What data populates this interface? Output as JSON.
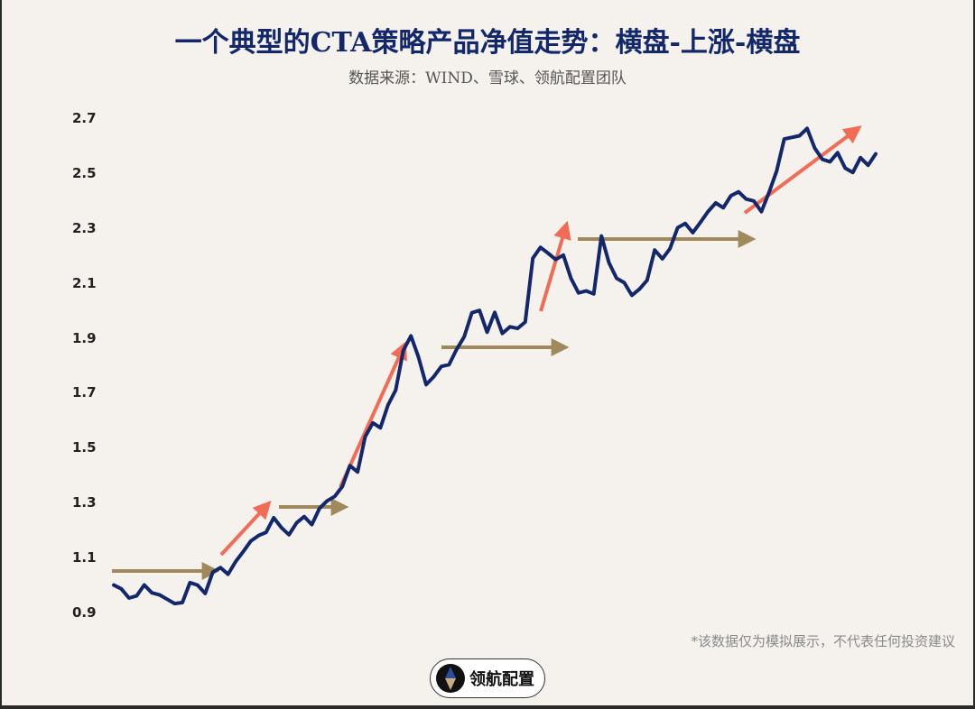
{
  "header": {
    "title": "一个典型的CTA策略产品净值走势：横盘-上涨-横盘",
    "subtitle": "数据来源：WIND、雪球、领航配置团队"
  },
  "footer": {
    "disclaimer": "*该数据仅为模拟展示，不代表任何投资建议",
    "logo_text": "领航配置"
  },
  "colors": {
    "background": "#f5f2ee",
    "line": "#13286b",
    "sideways_arrow": "#a08a5c",
    "uptrend_arrow": "#f26b55",
    "title": "#13286b"
  },
  "chart_data": {
    "type": "line",
    "title": "一个典型的CTA策略产品净值走势：横盘-上涨-横盘",
    "subtitle": "数据来源：WIND、雪球、领航配置团队",
    "xlabel": "",
    "ylabel": "",
    "ylim": [
      0.9,
      2.7
    ],
    "yticks": [
      "2.7",
      "2.5",
      "2.3",
      "2.1",
      "1.9",
      "1.7",
      "1.5",
      "1.3",
      "1.1",
      "0.9"
    ],
    "grid": false,
    "legend": null,
    "series": [
      {
        "name": "净值",
        "x": [
          0,
          1,
          2,
          3,
          4,
          5,
          6,
          7,
          8,
          9,
          10,
          11,
          12,
          13,
          14,
          15,
          16,
          17,
          18,
          19,
          20,
          21,
          22,
          23,
          24,
          25,
          26,
          27,
          28,
          29,
          30,
          31,
          32,
          33,
          34,
          35,
          36,
          37,
          38,
          39,
          40,
          41,
          42,
          43,
          44,
          45,
          46,
          47,
          48,
          49,
          50,
          51,
          52,
          53,
          54,
          55,
          56,
          57,
          58,
          59,
          60,
          61,
          62,
          63,
          64,
          65,
          66,
          67,
          68,
          69,
          70,
          71,
          72,
          73,
          74,
          75,
          76,
          77,
          78,
          79,
          80,
          81,
          82,
          83,
          84,
          85,
          86,
          87,
          88,
          89,
          90,
          91,
          92,
          93,
          94,
          95,
          96,
          97,
          98,
          99,
          100
        ],
        "values": [
          1.0,
          0.99,
          0.96,
          0.97,
          1.01,
          0.98,
          0.97,
          0.95,
          0.93,
          0.93,
          1.0,
          0.99,
          0.96,
          1.04,
          1.06,
          1.04,
          1.09,
          1.13,
          1.17,
          1.19,
          1.2,
          1.25,
          1.21,
          1.18,
          1.22,
          1.24,
          1.21,
          1.27,
          1.3,
          1.32,
          1.36,
          1.44,
          1.42,
          1.55,
          1.6,
          1.58,
          1.66,
          1.71,
          1.85,
          1.9,
          1.82,
          1.72,
          1.75,
          1.79,
          1.8,
          1.86,
          1.91,
          2.0,
          2.01,
          1.93,
          2.0,
          1.92,
          1.94,
          1.93,
          1.95,
          2.18,
          2.22,
          2.2,
          2.18,
          2.2,
          2.12,
          2.07,
          2.08,
          2.07,
          2.28,
          2.18,
          2.12,
          2.1,
          2.05,
          2.07,
          2.1,
          2.21,
          2.18,
          2.22,
          2.3,
          2.32,
          2.29,
          2.33,
          2.37,
          2.4,
          2.38,
          2.42,
          2.43,
          2.4,
          2.39,
          2.35,
          2.42,
          2.5,
          2.62,
          2.63,
          2.64,
          2.67,
          2.6,
          2.56,
          2.55,
          2.58,
          2.52,
          2.5,
          2.55,
          2.52,
          2.57
        ]
      }
    ],
    "annotations": [
      {
        "type": "arrow",
        "meaning": "横盘 (sideways)",
        "color": "#a08a5c",
        "from": [
          122,
          633
        ],
        "to": [
          232,
          633
        ]
      },
      {
        "type": "arrow",
        "meaning": "上涨 (uptrend)",
        "color": "#f26b55",
        "from": [
          243,
          615
        ],
        "to": [
          292,
          562
        ]
      },
      {
        "type": "arrow",
        "meaning": "横盘 (sideways)",
        "color": "#a08a5c",
        "from": [
          307,
          562
        ],
        "to": [
          375,
          562
        ]
      },
      {
        "type": "arrow",
        "meaning": "上涨 (uptrend)",
        "color": "#f26b55",
        "from": [
          375,
          540
        ],
        "to": [
          444,
          387
        ]
      },
      {
        "type": "arrow",
        "meaning": "横盘 (sideways)",
        "color": "#a08a5c",
        "from": [
          487,
          385
        ],
        "to": [
          619,
          385
        ]
      },
      {
        "type": "arrow",
        "meaning": "上涨 (uptrend)",
        "color": "#f26b55",
        "from": [
          597,
          345
        ],
        "to": [
          624,
          254
        ]
      },
      {
        "type": "arrow",
        "meaning": "横盘 (sideways)",
        "color": "#a08a5c",
        "from": [
          638,
          265
        ],
        "to": [
          826,
          265
        ]
      },
      {
        "type": "arrow",
        "meaning": "上涨 (uptrend)",
        "color": "#f26b55",
        "from": [
          823,
          236
        ],
        "to": [
          945,
          145
        ]
      }
    ]
  }
}
